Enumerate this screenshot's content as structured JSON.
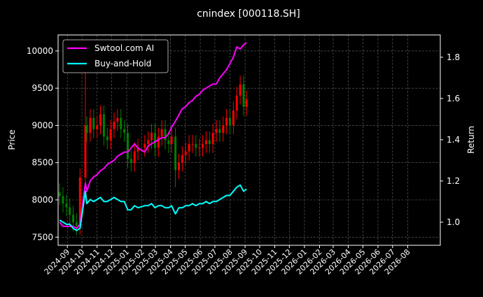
{
  "chart_data": {
    "type": "candlestick+line",
    "title": "cnindex [000118.SH]",
    "ylabel_left": "Price",
    "ylabel_right": "Return",
    "xlim": [
      "2024-08-13",
      "2026-10-07"
    ],
    "ylim_left": [
      7390,
      10215
    ],
    "ylim_right": [
      0.888,
      1.908
    ],
    "grid": true,
    "legend_position": "top-left",
    "background": "#000000",
    "up_color": "#ff0000",
    "down_color": "#008000",
    "x_ticks": [
      "2024-09",
      "2024-10",
      "2024-11",
      "2024-12",
      "2025-01",
      "2025-02",
      "2025-03",
      "2025-04",
      "2025-05",
      "2025-06",
      "2025-07",
      "2025-08",
      "2025-09",
      "2025-10",
      "2025-11",
      "2025-12",
      "2026-01",
      "2026-02",
      "2026-03",
      "2026-04",
      "2026-05",
      "2026-06",
      "2026-07",
      "2026-08"
    ],
    "y_ticks_left": [
      7500,
      8000,
      8500,
      9000,
      9500,
      10000
    ],
    "y_ticks_right": [
      "1.0",
      "1.2",
      "1.4",
      "1.6",
      "1.8"
    ],
    "dates": [
      "2024-08-16",
      "2024-08-23",
      "2024-08-30",
      "2024-09-06",
      "2024-09-13",
      "2024-09-20",
      "2024-09-27",
      "2024-10-08",
      "2024-10-11",
      "2024-10-18",
      "2024-10-25",
      "2024-11-01",
      "2024-11-08",
      "2024-11-15",
      "2024-11-22",
      "2024-11-29",
      "2024-12-06",
      "2024-12-13",
      "2024-12-20",
      "2024-12-27",
      "2025-01-03",
      "2025-01-10",
      "2025-01-17",
      "2025-01-24",
      "2025-02-07",
      "2025-02-14",
      "2025-02-21",
      "2025-02-28",
      "2025-03-07",
      "2025-03-14",
      "2025-03-21",
      "2025-03-28",
      "2025-04-03",
      "2025-04-11",
      "2025-04-18",
      "2025-04-25",
      "2025-05-02",
      "2025-05-09",
      "2025-05-16",
      "2025-05-23",
      "2025-05-30",
      "2025-06-06",
      "2025-06-13",
      "2025-06-20",
      "2025-06-27",
      "2025-07-04",
      "2025-07-11",
      "2025-07-18",
      "2025-07-25",
      "2025-08-01",
      "2025-08-08",
      "2025-08-15",
      "2025-08-22",
      "2025-08-29",
      "2025-09-04"
    ],
    "close": [
      8050,
      7950,
      7900,
      7800,
      7700,
      7650,
      8300,
      9000,
      8900,
      9100,
      8950,
      9000,
      9150,
      8850,
      8800,
      8950,
      9050,
      9100,
      8950,
      8900,
      8550,
      8500,
      8650,
      8700,
      8750,
      8800,
      8900,
      8700,
      8850,
      8950,
      8800,
      8750,
      8850,
      8400,
      8500,
      8600,
      8650,
      8750,
      8750,
      8700,
      8700,
      8750,
      8800,
      8750,
      8900,
      8950,
      8900,
      9000,
      9100,
      9000,
      9200,
      9400,
      9550,
      9250,
      9350
    ],
    "series": [
      {
        "name": "Swtool.com AI",
        "color": "#ff00ff",
        "values": [
          1.0,
          0.98,
          0.98,
          0.98,
          0.98,
          0.97,
          0.99,
          1.19,
          1.15,
          1.2,
          1.22,
          1.23,
          1.25,
          1.26,
          1.28,
          1.29,
          1.3,
          1.32,
          1.33,
          1.34,
          1.34,
          1.36,
          1.38,
          1.36,
          1.34,
          1.37,
          1.38,
          1.39,
          1.4,
          1.41,
          1.41,
          1.43,
          1.46,
          1.49,
          1.52,
          1.55,
          1.56,
          1.58,
          1.59,
          1.61,
          1.62,
          1.64,
          1.65,
          1.66,
          1.67,
          1.67,
          1.7,
          1.72,
          1.74,
          1.77,
          1.8,
          1.85,
          1.84,
          1.86,
          1.87
        ]
      },
      {
        "name": "Buy-and-Hold",
        "color": "#00ffff",
        "values": [
          1.01,
          1.0,
          0.99,
          0.99,
          0.97,
          0.96,
          0.97,
          1.15,
          1.09,
          1.11,
          1.1,
          1.11,
          1.12,
          1.1,
          1.1,
          1.11,
          1.12,
          1.11,
          1.1,
          1.1,
          1.06,
          1.06,
          1.08,
          1.07,
          1.08,
          1.08,
          1.09,
          1.07,
          1.08,
          1.08,
          1.07,
          1.07,
          1.08,
          1.04,
          1.07,
          1.07,
          1.08,
          1.08,
          1.09,
          1.08,
          1.09,
          1.09,
          1.1,
          1.09,
          1.1,
          1.1,
          1.11,
          1.12,
          1.13,
          1.13,
          1.15,
          1.17,
          1.18,
          1.15,
          1.16
        ]
      }
    ]
  }
}
